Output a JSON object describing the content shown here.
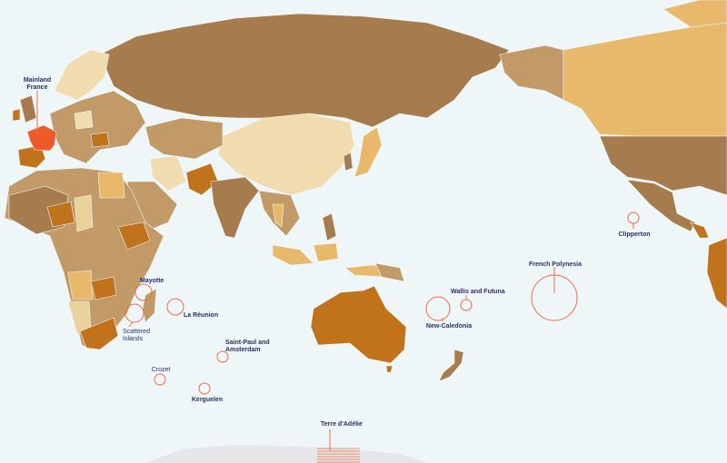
{
  "map": {
    "colors": {
      "ocean": "#eef6f7",
      "dark": "#a67c4e",
      "mid": "#c19a68",
      "orange": "#c0731a",
      "light": "#e8b96a",
      "pale": "#f0dcae",
      "highlight_france": "#f05a28",
      "marker": "#f06a4a",
      "label": "#2b2f6b",
      "antarctica": "#e4e6e8"
    },
    "labels": {
      "mainland_france": [
        "Mainland",
        "France"
      ],
      "mayotte": "Mayotte",
      "scattered_islands": [
        "Scattered",
        "Islands"
      ],
      "la_reunion": "La Réunion",
      "saint_paul_amsterdam": [
        "Saint-Paul and",
        "Amsterdam"
      ],
      "crozet": "Crozet",
      "kerguelen": "Kerguelen",
      "terre_adelie": "Terre d'Adélie",
      "new_caledonia": "New-Caledonia",
      "wallis_futuna": "Wallis and Futuna",
      "french_polynesia": "French Polynesia",
      "clipperton": "Clipperton"
    }
  }
}
